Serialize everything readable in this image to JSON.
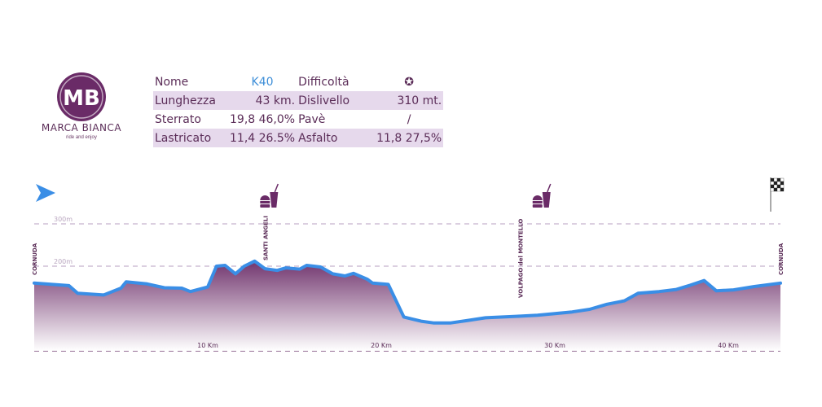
{
  "brand": {
    "name": "MARCA BIANCA",
    "tagline": "ride and enjoy"
  },
  "info": {
    "rows": [
      {
        "l1": "Nome",
        "v1": "K40",
        "l2": "Difficoltà",
        "v2": "✪"
      },
      {
        "l1": "Lunghezza",
        "v1": "43 km.",
        "l2": "Dislivello",
        "v2": "310 mt."
      },
      {
        "l1": "Sterrato",
        "v1": "19,8  46,0%",
        "l2": "Pavè",
        "v2": "/"
      },
      {
        "l1": "Lastricato",
        "v1": "11,4  26.5%",
        "l2": "Asfalto",
        "v2": "11,8  27,5%"
      }
    ]
  },
  "chart_data": {
    "type": "area",
    "xlabel": "",
    "ylabel": "",
    "xlim": [
      0,
      43
    ],
    "ylim": [
      0,
      330
    ],
    "x_ticks": [
      {
        "x": 10,
        "label": "10 Km"
      },
      {
        "x": 20,
        "label": "20 Km"
      },
      {
        "x": 30,
        "label": "30 Km"
      },
      {
        "x": 40,
        "label": "40 Km"
      }
    ],
    "y_gridlines": [
      {
        "y": 300,
        "label": "300m"
      },
      {
        "y": 200,
        "label": "200m"
      },
      {
        "y": 0,
        "label": ""
      }
    ],
    "points": [
      [
        0,
        160
      ],
      [
        2,
        154
      ],
      [
        2.5,
        136
      ],
      [
        4,
        132
      ],
      [
        5,
        148
      ],
      [
        5.3,
        163
      ],
      [
        6.5,
        158
      ],
      [
        7.5,
        149
      ],
      [
        8.5,
        148
      ],
      [
        9,
        140
      ],
      [
        10,
        151
      ],
      [
        10.5,
        200
      ],
      [
        11,
        202
      ],
      [
        11.6,
        182
      ],
      [
        12.1,
        200
      ],
      [
        12.7,
        212
      ],
      [
        13.3,
        194
      ],
      [
        14,
        190
      ],
      [
        14.5,
        196
      ],
      [
        15.3,
        193
      ],
      [
        15.7,
        202
      ],
      [
        16.5,
        198
      ],
      [
        17.2,
        182
      ],
      [
        17.9,
        177
      ],
      [
        18.4,
        183
      ],
      [
        19.2,
        169
      ],
      [
        19.5,
        160
      ],
      [
        20.4,
        157
      ],
      [
        21.3,
        80
      ],
      [
        22.3,
        70
      ],
      [
        23,
        66
      ],
      [
        24,
        66
      ],
      [
        25,
        72
      ],
      [
        26,
        78
      ],
      [
        27,
        80
      ],
      [
        28,
        82
      ],
      [
        29,
        84
      ],
      [
        30,
        88
      ],
      [
        31,
        92
      ],
      [
        32,
        98
      ],
      [
        33,
        110
      ],
      [
        34,
        118
      ],
      [
        34.8,
        136
      ],
      [
        36,
        140
      ],
      [
        37,
        145
      ],
      [
        37.8,
        155
      ],
      [
        38.6,
        166
      ],
      [
        39.3,
        142
      ],
      [
        40.3,
        144
      ],
      [
        41.5,
        152
      ],
      [
        43,
        160
      ]
    ],
    "waypoints": [
      {
        "x": 0,
        "label": "CORNUDA"
      },
      {
        "x": 13.3,
        "label": "SANTI ANGELI"
      },
      {
        "x": 28,
        "label": "VOLPAGO del MONTELLO"
      },
      {
        "x": 43,
        "label": "CORNUDA"
      }
    ],
    "markers": [
      {
        "x": 0,
        "icon": "start-arrow-icon"
      },
      {
        "x": 13.3,
        "icon": "food-drink-icon"
      },
      {
        "x": 29,
        "icon": "food-drink-icon"
      },
      {
        "x": 43,
        "icon": "finish-flag-icon"
      }
    ],
    "colors": {
      "line": "#3a8ee6",
      "fill_top": "#6a2b67",
      "fill_bottom": "#ffffff",
      "grid": "#b79fc0",
      "text": "#5b2d58"
    }
  }
}
